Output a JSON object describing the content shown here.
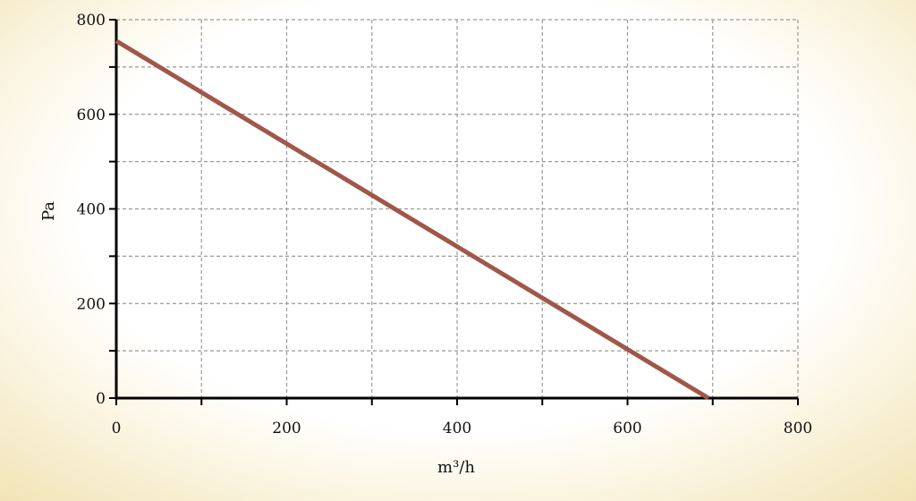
{
  "chart_data": {
    "type": "line",
    "xlabel": "m³/h",
    "ylabel": "Pa",
    "xlim": [
      0,
      800
    ],
    "ylim": [
      0,
      800
    ],
    "x_ticks": [
      "0",
      "200",
      "400",
      "600",
      "800"
    ],
    "y_ticks": [
      "0",
      "200",
      "400",
      "600",
      "800"
    ],
    "grid": true,
    "series": [
      {
        "x": [
          0,
          695
        ],
        "y": [
          755,
          0
        ],
        "color": "#a0574a"
      }
    ]
  }
}
